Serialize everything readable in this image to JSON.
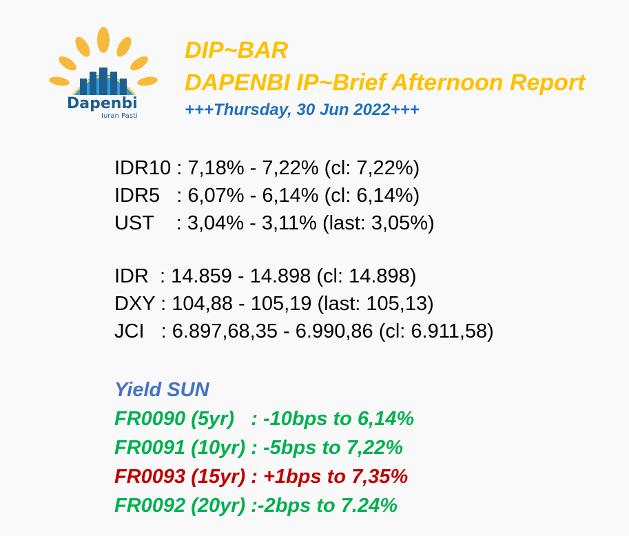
{
  "logo": {
    "name": "Dapenbi",
    "tagline": "Iuran Pasti"
  },
  "header": {
    "title": "DIP~BAR",
    "subtitle": "DAPENBI IP~Brief Afternoon Report",
    "date_line": "+++Thursday, 30 Jun 2022+++"
  },
  "rates": [
    {
      "label": "IDR10",
      "sep": " : ",
      "text": "7,18% - 7,22% (cl: 7,22%)"
    },
    {
      "label": "IDR5  ",
      "sep": " : ",
      "text": "6,07% - 6,14% (cl: 6,14%)"
    },
    {
      "label": "UST   ",
      "sep": " : ",
      "text": "3,04% - 3,11% (last: 3,05%)"
    }
  ],
  "markets": [
    {
      "label": "IDR ",
      "sep": " : ",
      "text": "14.859 - 14.898 (cl: 14.898)"
    },
    {
      "label": "DXY",
      "sep": " : ",
      "text": "104,88 - 105,19 (last: 105,13)"
    },
    {
      "label": "JCI  ",
      "sep": " : ",
      "text": "6.897,68,35 - 6.990,86 (cl: 6.911,58)"
    }
  ],
  "yield": {
    "heading": "Yield SUN",
    "rows": [
      {
        "text": "FR0090 (5yr)   : -10bps to 6,14%",
        "color": "#00b050"
      },
      {
        "text": "FR0091 (10yr) : -5bps to 7,22%",
        "color": "#00b050"
      },
      {
        "text": "FR0093 (15yr) : +1bps to 7,35%",
        "color": "#c00000"
      },
      {
        "text": "FR0092 (20yr) :-2bps to 7.24%",
        "color": "#00b050"
      }
    ]
  }
}
